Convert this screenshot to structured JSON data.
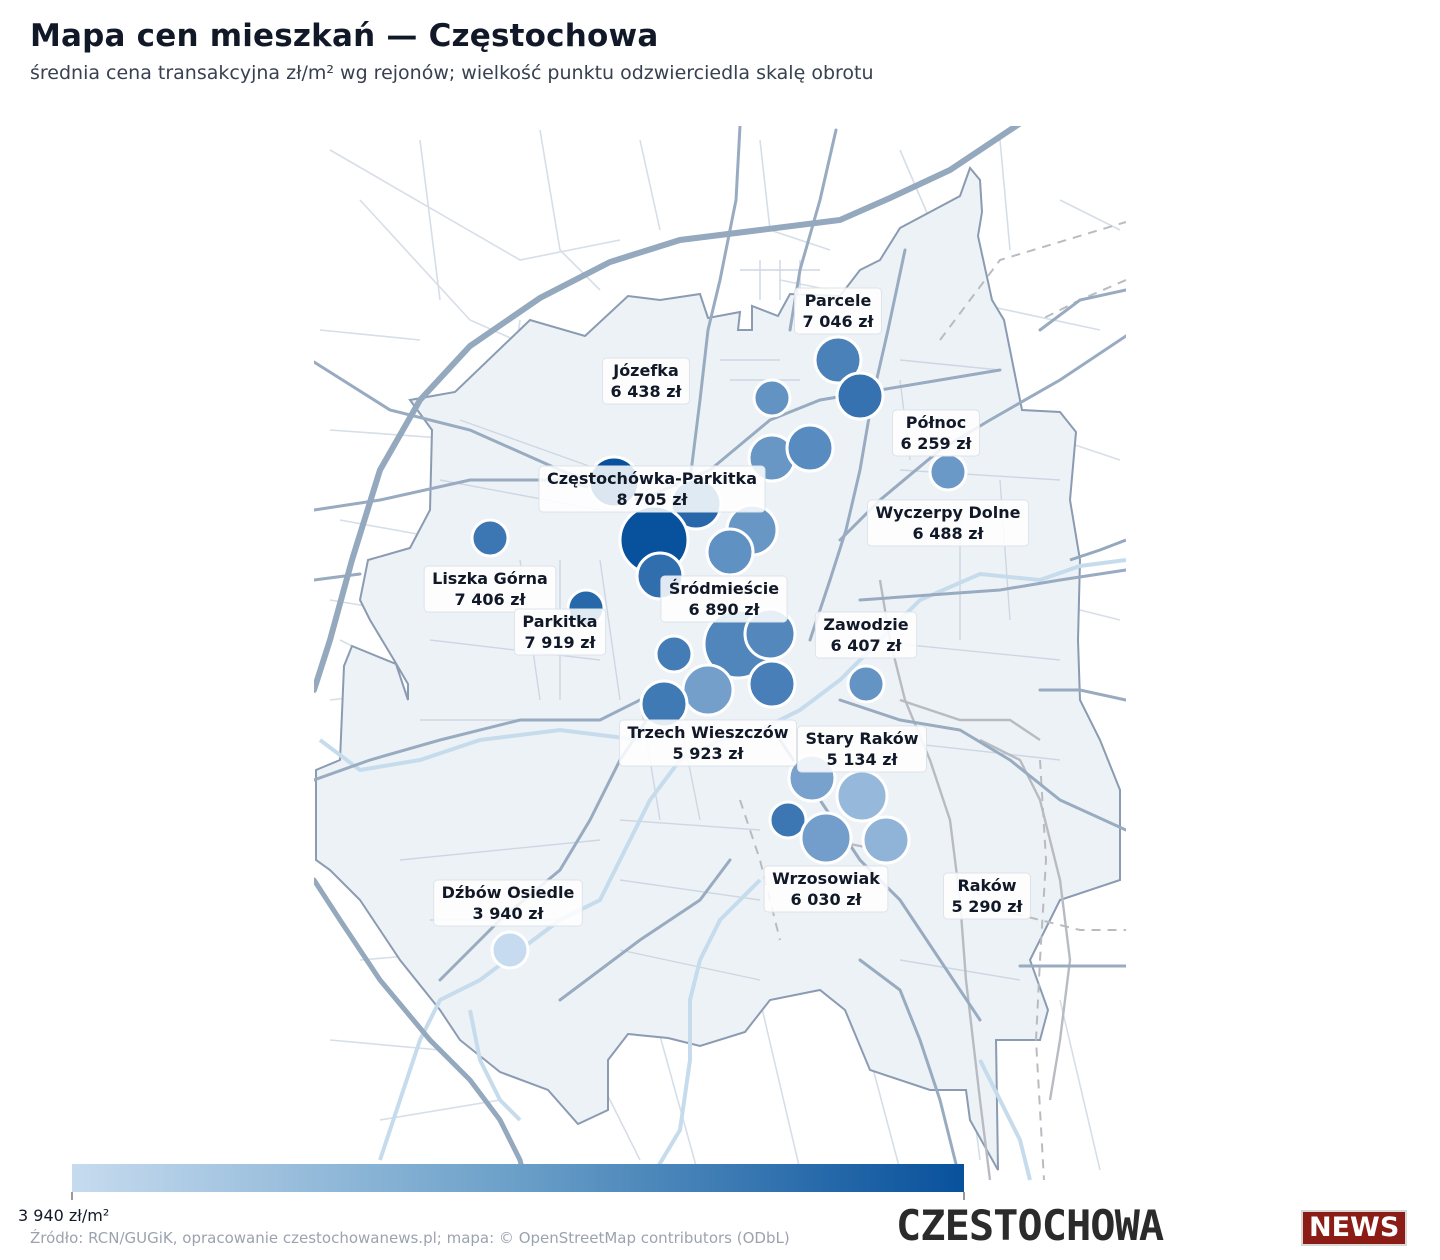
{
  "title": "Mapa cen mieszkań — Częstochowa",
  "subtitle": "średnia cena transakcyjna zł/m² wg rejonów; wielkość punktu odzwierciedla skalę obrotu",
  "colors": {
    "scale_low": "#c6dbef",
    "scale_high": "#08519c",
    "city_fill": "#edf2f7",
    "city_border": "#8a9bb2",
    "main_road": "#96a9bf",
    "minor_road": "#c8d3df",
    "water": "#c6dcec",
    "railway": "#b5b8bd"
  },
  "legend": {
    "min_label": "3 940 zł/m²"
  },
  "source": "Źródło: RCN/GUGiK, opracowanie czestochowanews.pl; mapa: © OpenStreetMap contributors (ODbL)",
  "logo": {
    "main": "CZESTOCHOWA",
    "badge": "NEWS"
  },
  "labels": [
    {
      "id": "parcele",
      "name": "Parcele",
      "value": "7 046 zł"
    },
    {
      "id": "jozefka",
      "name": "Józefka",
      "value": "6 438 zł"
    },
    {
      "id": "polnoc",
      "name": "Północ",
      "value": "6 259 zł"
    },
    {
      "id": "czestochowka",
      "name": "Częstochówka-Parkitka",
      "value": "8 705 zł"
    },
    {
      "id": "wyczerpy",
      "name": "Wyczerpy Dolne",
      "value": "6 488 zł"
    },
    {
      "id": "liszka",
      "name": "Liszka Górna",
      "value": "7 406 zł"
    },
    {
      "id": "srodmiescie",
      "name": "Śródmieście",
      "value": "6 890 zł"
    },
    {
      "id": "parkitka",
      "name": "Parkitka",
      "value": "7 919 zł"
    },
    {
      "id": "zawodzie",
      "name": "Zawodzie",
      "value": "6 407 zł"
    },
    {
      "id": "trzech",
      "name": "Trzech Wieszczów",
      "value": "5 923 zł"
    },
    {
      "id": "starrakow",
      "name": "Stary Raków",
      "value": "5 134 zł"
    },
    {
      "id": "wrzosowiak",
      "name": "Wrzosowiak",
      "value": "6 030 zł"
    },
    {
      "id": "rakow",
      "name": "Raków",
      "value": "5 290 zł"
    },
    {
      "id": "dzbow",
      "name": "Dźbów Osiedle",
      "value": "3 940 zł"
    }
  ],
  "districts": [
    {
      "id": "parcele",
      "price": 7046,
      "turnover": 3
    },
    {
      "id": "parcele-b",
      "price": 7550,
      "turnover": 3
    },
    {
      "id": "jozefka",
      "price": 6438,
      "turnover": 2
    },
    {
      "id": "polnoc-a",
      "price": 6300,
      "turnover": 3
    },
    {
      "id": "polnoc-b",
      "price": 6700,
      "turnover": 3
    },
    {
      "id": "polnoc",
      "price": 6259,
      "turnover": 2
    },
    {
      "id": "czestochowka-top",
      "price": 8900,
      "turnover": 4
    },
    {
      "id": "czestochowka-b",
      "price": 7900,
      "turnover": 4
    },
    {
      "id": "czestochowka-c",
      "price": 6300,
      "turnover": 4
    },
    {
      "id": "czestochowka",
      "price": 8705,
      "turnover": 6
    },
    {
      "id": "wyczerpy",
      "price": 6488,
      "turnover": 3
    },
    {
      "id": "liszka",
      "price": 7406,
      "turnover": 2
    },
    {
      "id": "srodmiescie-a",
      "price": 7700,
      "turnover": 3
    },
    {
      "id": "parkitka",
      "price": 7919,
      "turnover": 2
    },
    {
      "id": "srodmiescie",
      "price": 6890,
      "turnover": 6
    },
    {
      "id": "srodmiescie-b",
      "price": 6800,
      "turnover": 4
    },
    {
      "id": "srodmiescie-c",
      "price": 7200,
      "turnover": 2
    },
    {
      "id": "trzech-a",
      "price": 6000,
      "turnover": 4
    },
    {
      "id": "trzech-b",
      "price": 7300,
      "turnover": 3
    },
    {
      "id": "trzech-c",
      "price": 7100,
      "turnover": 3
    },
    {
      "id": "zawodzie",
      "price": 6407,
      "turnover": 2
    },
    {
      "id": "trzech",
      "price": 5923,
      "turnover": 2
    },
    {
      "id": "starrakow-a",
      "price": 5900,
      "turnover": 3
    },
    {
      "id": "starrakow",
      "price": 5134,
      "turnover": 4
    },
    {
      "id": "wrzosowiak-a",
      "price": 7400,
      "turnover": 2
    },
    {
      "id": "wrzosowiak",
      "price": 6030,
      "turnover": 4
    },
    {
      "id": "rakow",
      "price": 5290,
      "turnover": 3
    },
    {
      "id": "dzbow",
      "price": 3940,
      "turnover": 2
    }
  ]
}
